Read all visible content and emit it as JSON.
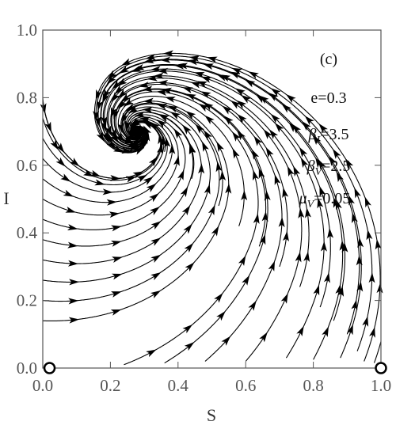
{
  "chart_data": {
    "type": "line",
    "subtype": "phase-portrait",
    "title": "",
    "xlabel": "S",
    "ylabel": "I",
    "xlim": [
      0,
      1
    ],
    "ylim": [
      0,
      1
    ],
    "xticks": [
      "0.0",
      "0.2",
      "0.4",
      "0.6",
      "0.8",
      "1.0"
    ],
    "yticks": [
      "0.0",
      "0.2",
      "0.4",
      "0.6",
      "0.8",
      "1.0"
    ],
    "grid": false,
    "panel_label": "(c)",
    "parameters": [
      {
        "sym": "e",
        "sub": "",
        "eq": "=0.3"
      },
      {
        "sym": "β",
        "sub": "I",
        "eq": "=3.5"
      },
      {
        "sym": "β",
        "sub": "V",
        "eq": "=2.5"
      },
      {
        "sym": "μ",
        "sub": "V",
        "eq": "=0.05"
      }
    ],
    "equilibria": [
      {
        "S": 0.28,
        "I": 0.7,
        "stability": "stable"
      },
      {
        "S": 0.02,
        "I": 0.0,
        "stability": "unstable"
      },
      {
        "S": 1.0,
        "I": 0.0,
        "stability": "unstable"
      }
    ],
    "trajectories": [
      {
        "start": [
          0.0,
          0.92
        ]
      },
      {
        "start": [
          0.0,
          0.86
        ]
      },
      {
        "start": [
          0.0,
          0.8
        ]
      },
      {
        "start": [
          0.0,
          0.74
        ]
      },
      {
        "start": [
          0.0,
          0.68
        ]
      },
      {
        "start": [
          0.0,
          0.62
        ]
      },
      {
        "start": [
          0.0,
          0.56
        ]
      },
      {
        "start": [
          0.0,
          0.5
        ]
      },
      {
        "start": [
          0.0,
          0.44
        ]
      },
      {
        "start": [
          0.0,
          0.38
        ]
      },
      {
        "start": [
          0.0,
          0.32
        ]
      },
      {
        "start": [
          0.0,
          0.26
        ]
      },
      {
        "start": [
          0.0,
          0.2
        ]
      },
      {
        "start": [
          0.0,
          0.14
        ]
      },
      {
        "start": [
          0.9,
          0.1
        ]
      },
      {
        "start": [
          0.86,
          0.14
        ]
      },
      {
        "start": [
          0.82,
          0.18
        ]
      },
      {
        "start": [
          0.76,
          0.24
        ]
      },
      {
        "start": [
          0.7,
          0.3
        ]
      },
      {
        "start": [
          0.64,
          0.36
        ]
      },
      {
        "start": [
          0.58,
          0.42
        ]
      },
      {
        "start": [
          0.52,
          0.48
        ]
      },
      {
        "start": [
          0.44,
          0.56
        ]
      },
      {
        "start": [
          0.36,
          0.64
        ]
      },
      {
        "start": [
          0.98,
          0.015
        ]
      },
      {
        "start": [
          0.95,
          0.02
        ]
      },
      {
        "start": [
          0.93,
          0.05
        ]
      },
      {
        "start": [
          0.88,
          0.03
        ]
      },
      {
        "start": [
          0.8,
          0.025
        ]
      },
      {
        "start": [
          0.72,
          0.03
        ]
      },
      {
        "start": [
          0.6,
          0.02
        ]
      },
      {
        "start": [
          0.48,
          0.02
        ]
      },
      {
        "start": [
          0.36,
          0.015
        ]
      },
      {
        "start": [
          0.24,
          0.01
        ]
      }
    ]
  }
}
